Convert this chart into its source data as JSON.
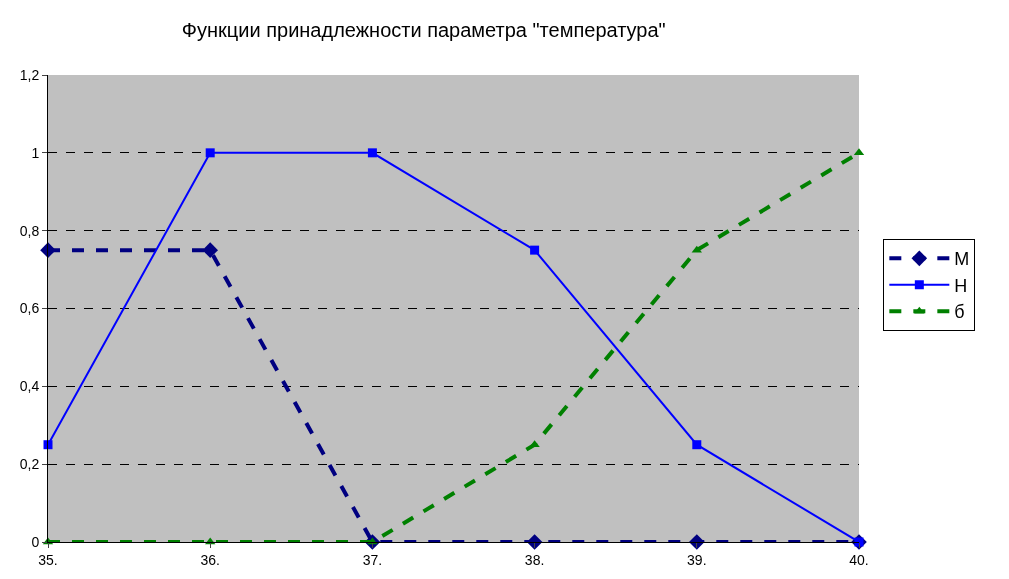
{
  "chart_data": {
    "type": "line",
    "title": "Функции принадлежности параметра \"температура\"",
    "categories": [
      "35.",
      "36.",
      "37.",
      "38.",
      "39.",
      "40."
    ],
    "series": [
      {
        "name": "М",
        "color": "#000080",
        "values": [
          0.75,
          0.75,
          0,
          0,
          0,
          0
        ],
        "marker": "diamond",
        "line_style": "dashed"
      },
      {
        "name": "Н",
        "color": "#0000ff",
        "values": [
          0.25,
          1,
          1,
          0.75,
          0.25,
          0
        ],
        "marker": "square",
        "line_style": "solid"
      },
      {
        "name": "б",
        "color": "#008000",
        "values": [
          0,
          0,
          0,
          0.25,
          0.75,
          1
        ],
        "marker": "triangle",
        "line_style": "dashed"
      }
    ],
    "ylim": [
      0,
      1.2
    ],
    "yticks": [
      {
        "value": 0,
        "label": "0"
      },
      {
        "value": 0.2,
        "label": "0,2"
      },
      {
        "value": 0.4,
        "label": "0,4"
      },
      {
        "value": 0.6,
        "label": "0,6"
      },
      {
        "value": 0.8,
        "label": "0,8"
      },
      {
        "value": 1,
        "label": "1"
      },
      {
        "value": 1.2,
        "label": "1,2"
      }
    ],
    "grid": "y",
    "legend": "right"
  }
}
